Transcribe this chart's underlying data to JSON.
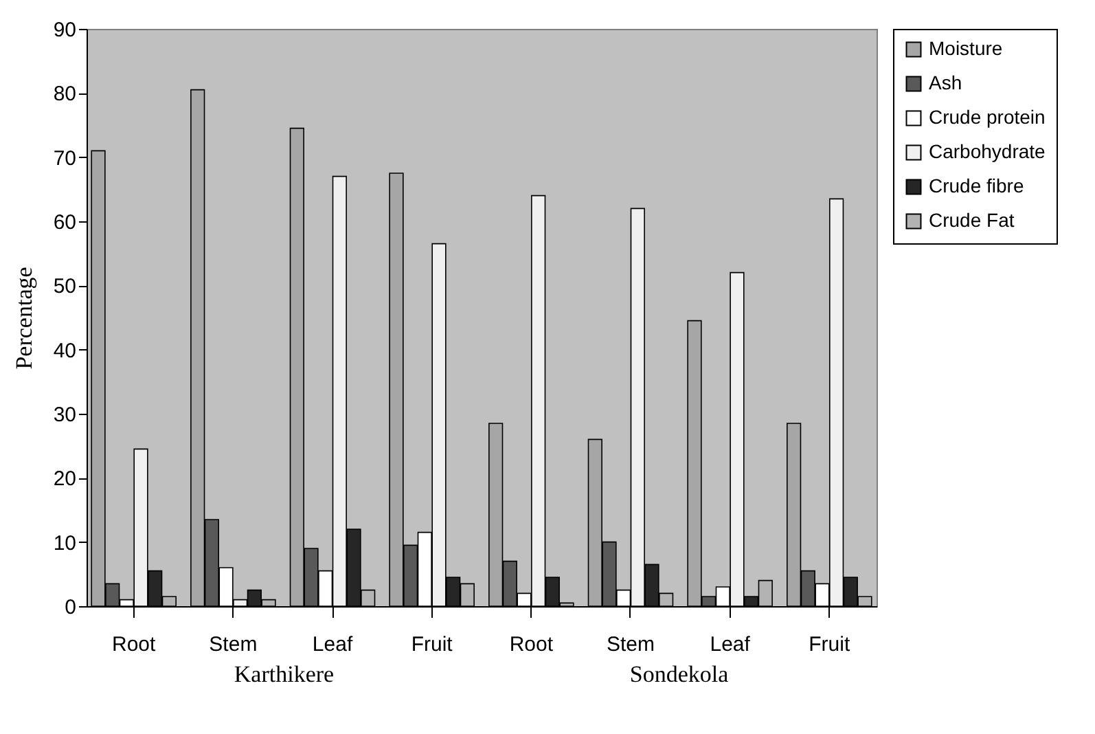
{
  "chart_data": {
    "type": "bar",
    "ylabel": "Percentage",
    "categories": [
      "Root",
      "Stem",
      "Leaf",
      "Fruit",
      "Root",
      "Stem",
      "Leaf",
      "Fruit"
    ],
    "series": [
      {
        "name": "Moisture",
        "color": "#a6a6a6",
        "values": [
          71,
          80.5,
          74.5,
          67.5,
          28.5,
          26,
          44.5,
          28.5
        ]
      },
      {
        "name": "Ash",
        "color": "#595959",
        "values": [
          3.5,
          13.5,
          9,
          9.5,
          7,
          10,
          1.5,
          5.5
        ]
      },
      {
        "name": "Crude protein",
        "color": "#ffffff",
        "values": [
          1,
          6,
          5.5,
          11.5,
          2,
          2.5,
          3,
          3.5
        ]
      },
      {
        "name": "Carbohydrate",
        "color": "#f0f0f0",
        "values": [
          24.5,
          1,
          67,
          56.5,
          64,
          62,
          52,
          63.5
        ]
      },
      {
        "name": "Crude fibre",
        "color": "#262626",
        "values": [
          5.5,
          2.5,
          12,
          4.5,
          4.5,
          6.5,
          1.5,
          4.5
        ]
      },
      {
        "name": "Crude Fat",
        "color": "#b3b3b3",
        "values": [
          1.5,
          1,
          2.5,
          3.5,
          0.5,
          2,
          4,
          1.5
        ]
      }
    ],
    "annotations": [
      "Karthikere",
      "Sondekola"
    ],
    "ylim": [
      0,
      90
    ],
    "yticks": [
      0,
      10,
      20,
      30,
      40,
      50,
      60,
      70,
      80,
      90
    ],
    "grid": false,
    "legend": "right"
  }
}
